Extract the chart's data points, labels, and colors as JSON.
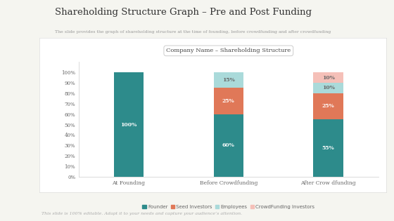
{
  "title": "Shareholding Structure Graph – Pre and Post Funding",
  "subtitle": "The slide provides the graph of shareholding structure at the time of founding, before crowdfunding and after crowdfunding",
  "chart_title": "Company Name – Shareholding Structure",
  "footer": "This slide is 100% editable. Adapt it to your needs and capture your audience’s attention.",
  "categories": [
    "At Founding",
    "Before Crowdfunding",
    "After Crow dfunding"
  ],
  "series": {
    "Founder": [
      100,
      60,
      55
    ],
    "Seed Investors": [
      0,
      25,
      25
    ],
    "Employees": [
      0,
      15,
      10
    ],
    "CrowdFunding Investors": [
      0,
      0,
      10
    ]
  },
  "colors": {
    "Founder": "#2d8b8b",
    "Seed Investors": "#e07858",
    "Employees": "#aadada",
    "CrowdFunding Investors": "#f5c0b8"
  },
  "label_colors": {
    "Founder": "#ffffff",
    "Seed Investors": "#ffffff",
    "Employees": "#666666",
    "CrowdFunding Investors": "#666666"
  },
  "ylim": [
    0,
    110
  ],
  "yticks": [
    0,
    10,
    20,
    30,
    40,
    50,
    60,
    70,
    80,
    90,
    100
  ],
  "ytick_labels": [
    "0%",
    "10%",
    "20%",
    "30%",
    "40%",
    "50%",
    "60%",
    "70%",
    "80%",
    "90%",
    "100%"
  ],
  "bg_color": "#f5f5f0",
  "chart_bg": "#ffffff",
  "title_fontsize": 9.5,
  "subtitle_fontsize": 4.5,
  "chart_title_fontsize": 6,
  "bar_label_fontsize": 5.5,
  "legend_fontsize": 5,
  "tick_fontsize": 5,
  "axis_label_fontsize": 5.5,
  "footer_fontsize": 4.5
}
